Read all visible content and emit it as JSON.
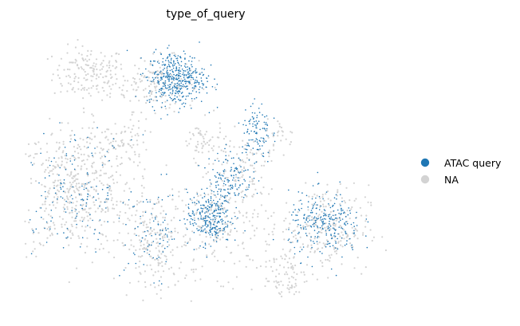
{
  "chart_data": {
    "type": "scatter",
    "title": "type_of_query",
    "xlabel": "",
    "ylabel": "",
    "axes_visible": false,
    "legend": {
      "placement": "right",
      "entries": [
        {
          "label": "ATAC query",
          "color": "#1f77b4"
        },
        {
          "label": "NA",
          "color": "#d3d3d3"
        }
      ]
    },
    "series": [
      {
        "name": "NA",
        "color": "#d3d3d3",
        "clusters": [
          {
            "center": [
              0.18,
              0.86
            ],
            "spread": [
              0.05,
              0.05
            ],
            "weight": 0.06
          },
          {
            "center": [
              0.36,
              0.82
            ],
            "spread": [
              0.06,
              0.05
            ],
            "weight": 0.06
          },
          {
            "center": [
              0.14,
              0.42
            ],
            "spread": [
              0.08,
              0.12
            ],
            "weight": 0.18
          },
          {
            "center": [
              0.26,
              0.6
            ],
            "spread": [
              0.04,
              0.04
            ],
            "weight": 0.03
          },
          {
            "center": [
              0.36,
              0.22
            ],
            "spread": [
              0.05,
              0.1
            ],
            "weight": 0.08
          },
          {
            "center": [
              0.55,
              0.3
            ],
            "spread": [
              0.07,
              0.1
            ],
            "weight": 0.09
          },
          {
            "center": [
              0.49,
              0.6
            ],
            "spread": [
              0.03,
              0.04
            ],
            "weight": 0.02
          },
          {
            "center": [
              0.6,
              0.53
            ],
            "spread": [
              0.04,
              0.05
            ],
            "weight": 0.03
          },
          {
            "center": [
              0.83,
              0.28
            ],
            "spread": [
              0.06,
              0.08
            ],
            "weight": 0.09
          },
          {
            "center": [
              0.72,
              0.1
            ],
            "spread": [
              0.03,
              0.06
            ],
            "weight": 0.03
          },
          {
            "center": [
              0.71,
              0.63
            ],
            "spread": [
              0.02,
              0.03
            ],
            "weight": 0.01
          }
        ]
      },
      {
        "name": "ATAC query",
        "color": "#1f77b4",
        "clusters": [
          {
            "center": [
              0.42,
              0.84
            ],
            "spread": [
              0.04,
              0.05
            ],
            "weight": 0.16
          },
          {
            "center": [
              0.51,
              0.32
            ],
            "spread": [
              0.03,
              0.05
            ],
            "weight": 0.1
          },
          {
            "center": [
              0.57,
              0.47
            ],
            "spread": [
              0.03,
              0.05
            ],
            "weight": 0.05
          },
          {
            "center": [
              0.64,
              0.64
            ],
            "spread": [
              0.02,
              0.06
            ],
            "weight": 0.04
          },
          {
            "center": [
              0.83,
              0.29
            ],
            "spread": [
              0.05,
              0.06
            ],
            "weight": 0.1
          },
          {
            "center": [
              0.14,
              0.42
            ],
            "spread": [
              0.08,
              0.1
            ],
            "weight": 0.06
          },
          {
            "center": [
              0.36,
              0.26
            ],
            "spread": [
              0.04,
              0.08
            ],
            "weight": 0.03
          }
        ]
      }
    ]
  }
}
